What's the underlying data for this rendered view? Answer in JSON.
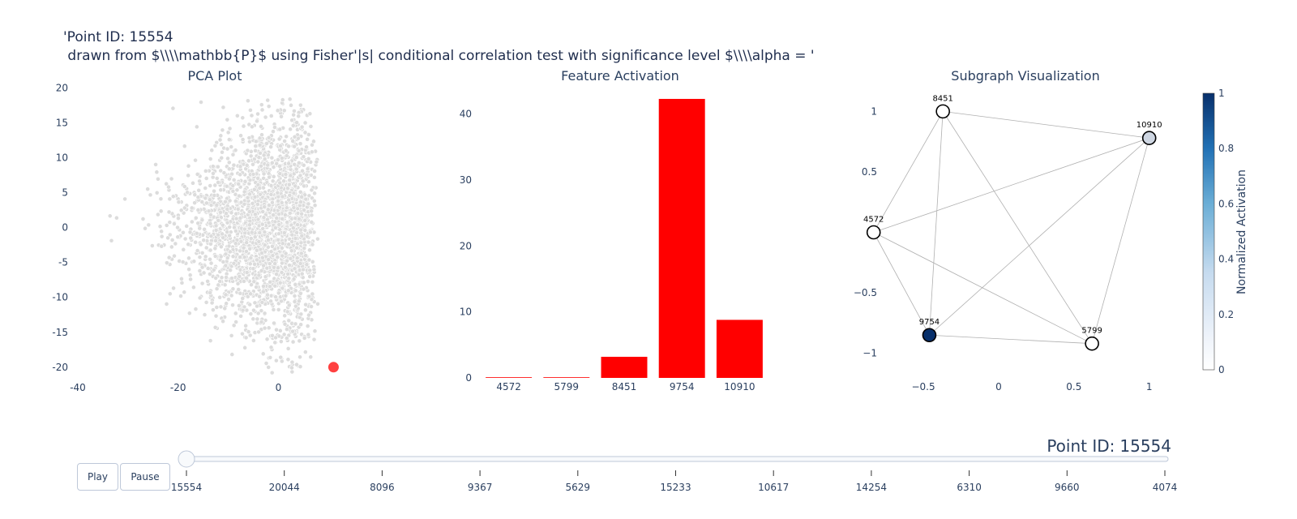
{
  "title_lines": [
    "'Point ID: 15554",
    " drawn from $\\\\\\\\mathbb{P}$ using Fisher'|s| conditional correlation test with significance level $\\\\\\\\alpha = '"
  ],
  "chart_data": [
    {
      "type": "scatter",
      "title": "PCA Plot",
      "xlim": [
        -40,
        14
      ],
      "ylim": [
        -22,
        21
      ],
      "xticks": [
        -40,
        -20,
        0
      ],
      "yticks": [
        20,
        15,
        10,
        5,
        0,
        -5,
        -10,
        -15,
        -20
      ],
      "background_points_color": "#dcdcdc",
      "highlight": {
        "x": 11,
        "y": -20,
        "color": "#ff0000"
      }
    },
    {
      "type": "bar",
      "title": "Feature Activation",
      "categories": [
        "4572",
        "5799",
        "8451",
        "9754",
        "10910"
      ],
      "values": [
        0.1,
        0.1,
        3.2,
        42.3,
        8.8
      ],
      "ylim": [
        0,
        45
      ],
      "yticks": [
        0,
        10,
        20,
        30,
        40
      ],
      "color": "#ff0000"
    },
    {
      "type": "network",
      "title": "Subgraph Visualization",
      "xlim": [
        -0.78,
        1.12
      ],
      "ylim": [
        -1.13,
        1.13
      ],
      "xticks": [
        -0.5,
        0,
        0.5,
        1
      ],
      "xtick_labels": [
        "−0.5",
        "0",
        "0.5",
        "1"
      ],
      "yticks": [
        1,
        0.5,
        0,
        -0.5,
        -1
      ],
      "ytick_labels": [
        "1",
        "0.5",
        "0",
        "−0.5",
        "−1"
      ],
      "nodes": [
        {
          "id": "8451",
          "x": -0.37,
          "y": 1.0,
          "activation": 0.0
        },
        {
          "id": "10910",
          "x": 1.0,
          "y": 0.78,
          "activation": 0.18
        },
        {
          "id": "4572",
          "x": -0.83,
          "y": 0.0,
          "activation": 0.0
        },
        {
          "id": "9754",
          "x": -0.46,
          "y": -0.85,
          "activation": 1.0
        },
        {
          "id": "5799",
          "x": 0.62,
          "y": -0.92,
          "activation": 0.0
        }
      ],
      "edges": [
        [
          "8451",
          "10910"
        ],
        [
          "8451",
          "4572"
        ],
        [
          "8451",
          "9754"
        ],
        [
          "8451",
          "5799"
        ],
        [
          "10910",
          "4572"
        ],
        [
          "10910",
          "9754"
        ],
        [
          "10910",
          "5799"
        ],
        [
          "4572",
          "9754"
        ],
        [
          "4572",
          "5799"
        ],
        [
          "9754",
          "5799"
        ]
      ],
      "colorbar": {
        "title": "Normalized Activation",
        "ticks": [
          "1",
          "0.8",
          "0.6",
          "0.4",
          "0.2",
          "0"
        ],
        "low_color": "#ffffff",
        "high_color": "#08306b"
      }
    }
  ],
  "controls": {
    "play_label": "Play",
    "pause_label": "Pause",
    "current_prefix": "Point ID:",
    "current_value": "15554",
    "slider_steps": [
      "15554",
      "20044",
      "8096",
      "9367",
      "5629",
      "15233",
      "10617",
      "14254",
      "6310",
      "9660",
      "4074"
    ],
    "active_step": 0
  }
}
